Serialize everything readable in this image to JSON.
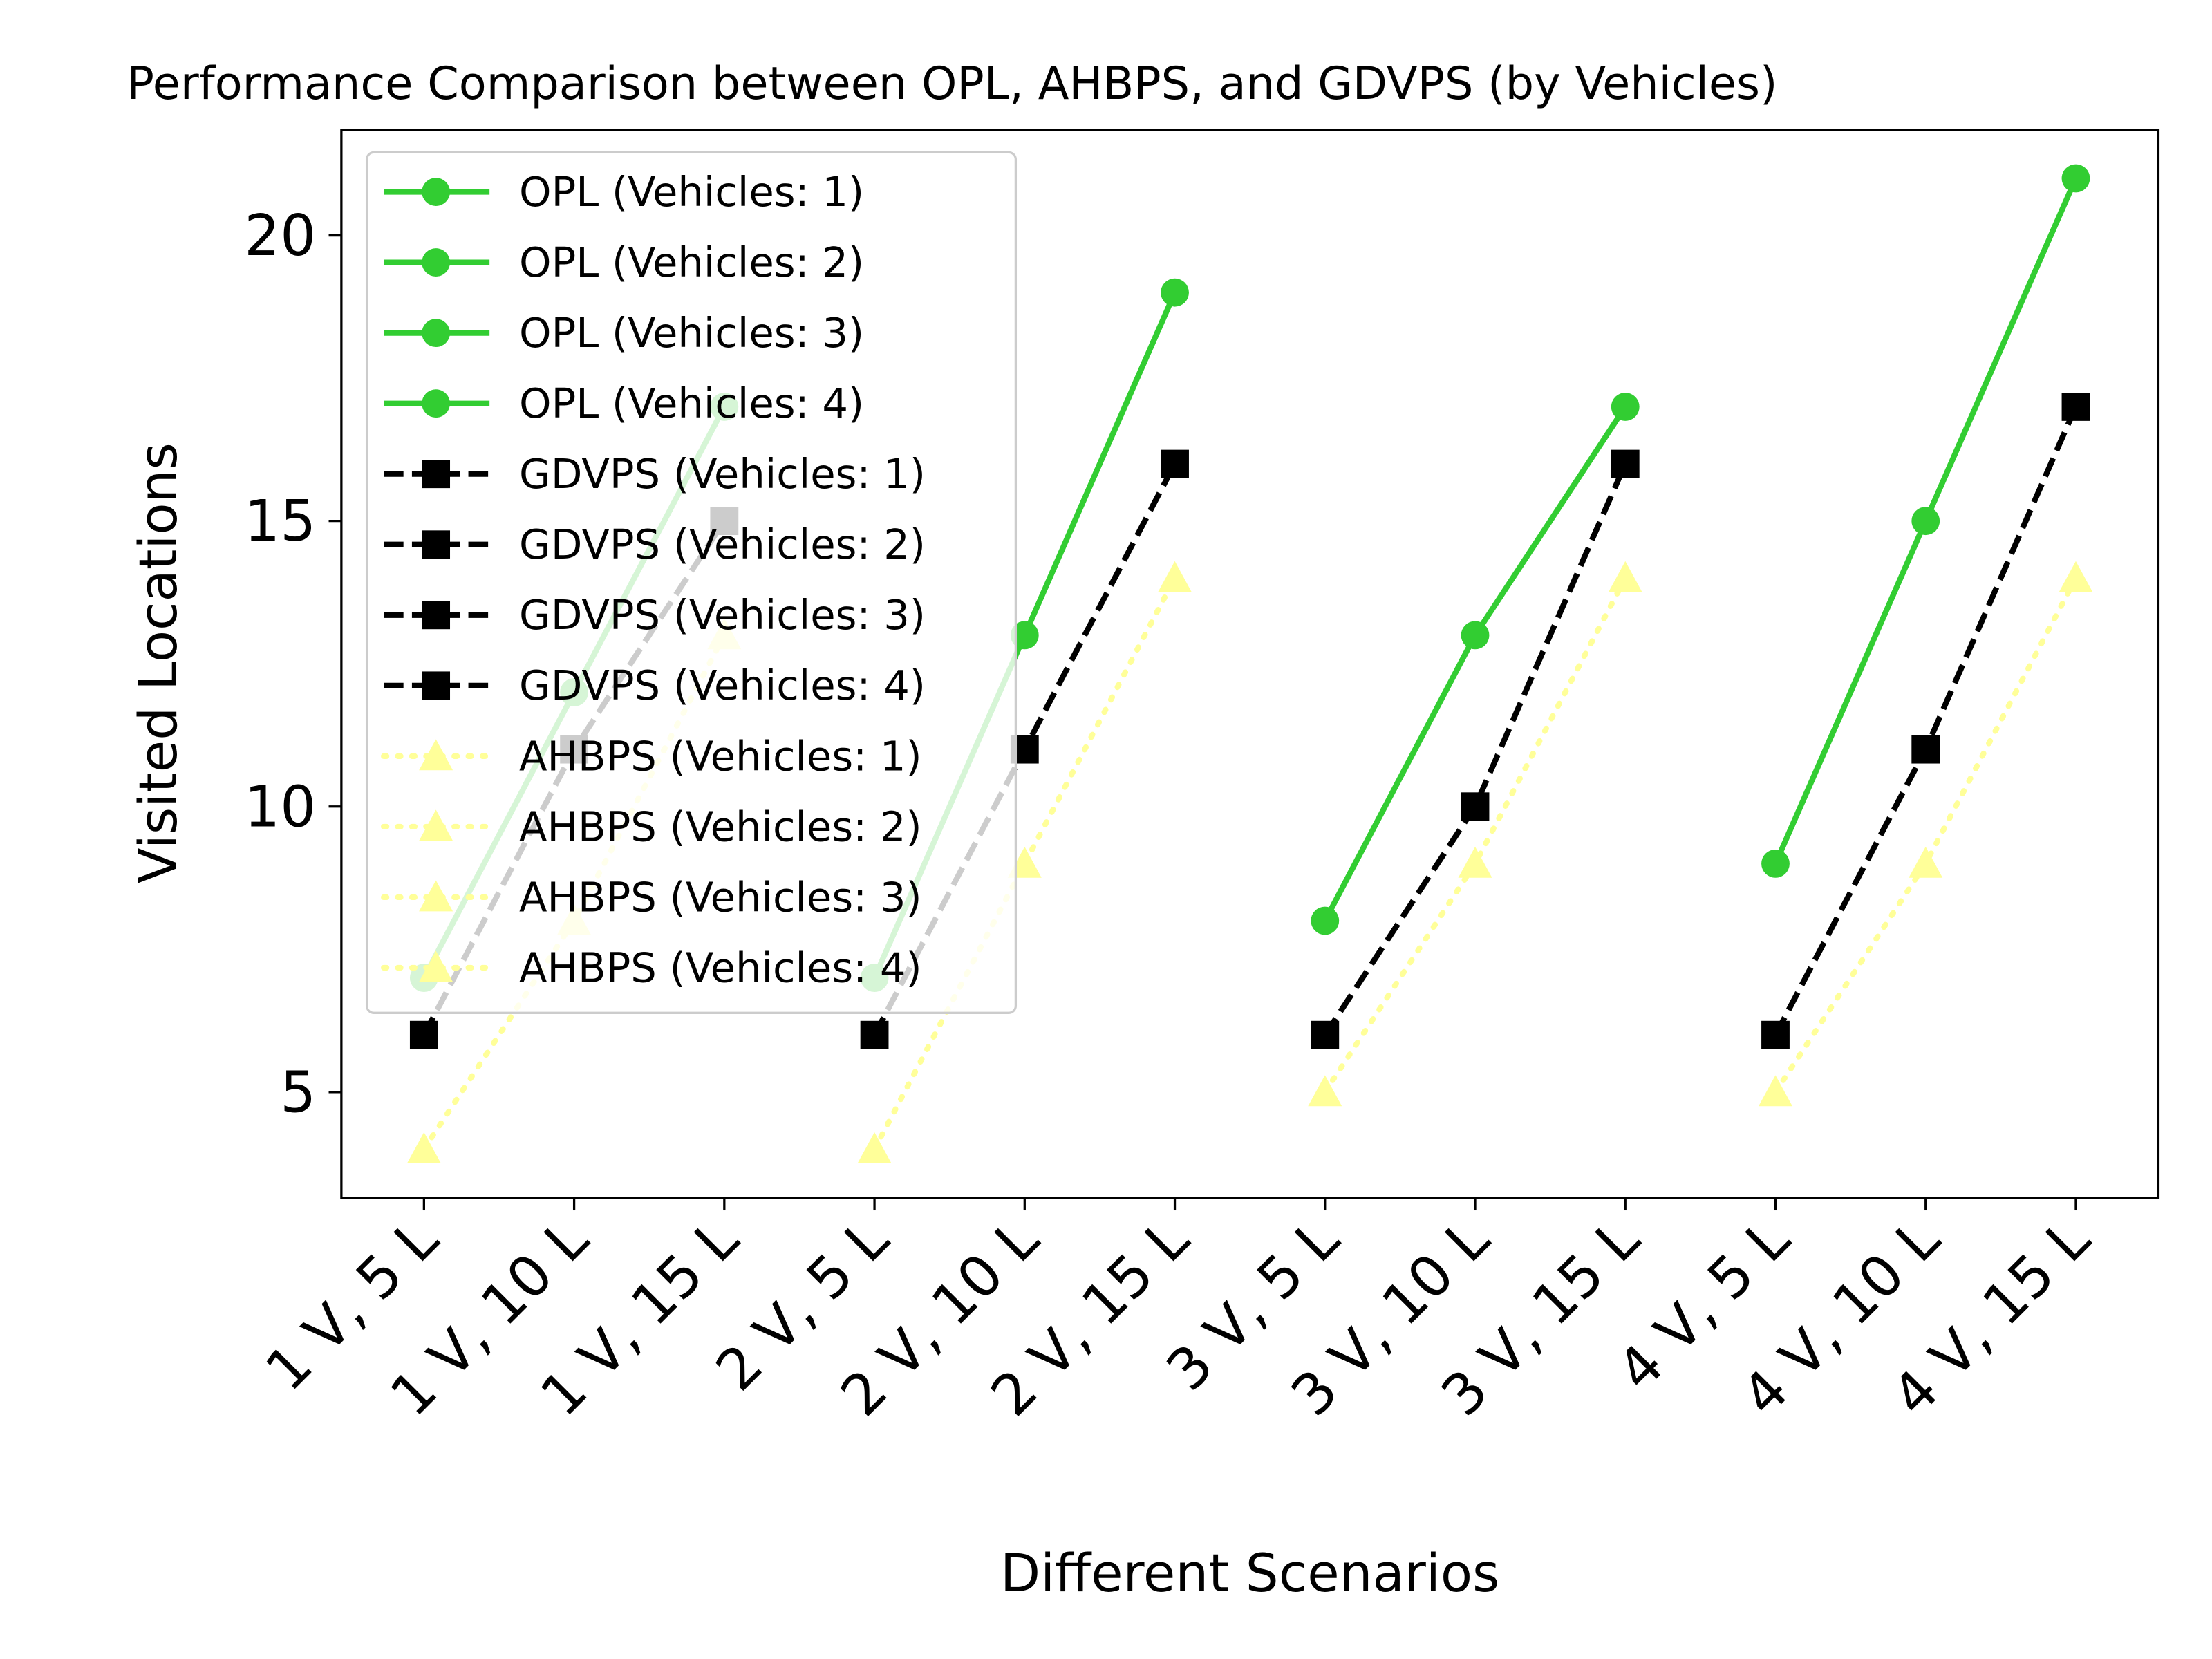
{
  "chart_data": {
    "type": "line",
    "title": "Performance Comparison between OPL, AHBPS, and GDVPS (by Vehicles)",
    "x_label": "Different Scenarios",
    "y_label": "Visited Locations",
    "categories": [
      "1 V, 5 L",
      "1 V, 10 L",
      "1 V, 15 L",
      "2 V, 5 L",
      "2 V, 10 L",
      "2 V, 15 L",
      "3 V, 5 L",
      "3 V, 10 L",
      "3 V, 15 L",
      "4 V, 5 L",
      "4 V, 10 L",
      "4 V, 15 L"
    ],
    "ylim": [
      3.15,
      21.85
    ],
    "yticks": [
      5,
      10,
      15,
      20
    ],
    "legend": "upper left",
    "series": [
      {
        "name": "OPL (Vehicles: 1)",
        "color": "#32cd32",
        "linestyle": "solid",
        "marker": "circle",
        "values": [
          7,
          12,
          17,
          null,
          null,
          null,
          null,
          null,
          null,
          null,
          null,
          null
        ]
      },
      {
        "name": "OPL (Vehicles: 2)",
        "color": "#32cd32",
        "linestyle": "solid",
        "marker": "circle",
        "values": [
          null,
          null,
          null,
          7,
          13,
          19,
          null,
          null,
          null,
          null,
          null,
          null
        ]
      },
      {
        "name": "OPL (Vehicles: 3)",
        "color": "#32cd32",
        "linestyle": "solid",
        "marker": "circle",
        "values": [
          null,
          null,
          null,
          null,
          null,
          null,
          8,
          13,
          17,
          null,
          null,
          null
        ]
      },
      {
        "name": "OPL (Vehicles: 4)",
        "color": "#32cd32",
        "linestyle": "solid",
        "marker": "circle",
        "values": [
          null,
          null,
          null,
          null,
          null,
          null,
          null,
          null,
          null,
          9,
          15,
          21
        ]
      },
      {
        "name": "GDVPS (Vehicles: 1)",
        "color": "#000000",
        "linestyle": "dashed",
        "marker": "square",
        "values": [
          6,
          11,
          15,
          null,
          null,
          null,
          null,
          null,
          null,
          null,
          null,
          null
        ]
      },
      {
        "name": "GDVPS (Vehicles: 2)",
        "color": "#000000",
        "linestyle": "dashed",
        "marker": "square",
        "values": [
          null,
          null,
          null,
          6,
          11,
          16,
          null,
          null,
          null,
          null,
          null,
          null
        ]
      },
      {
        "name": "GDVPS (Vehicles: 3)",
        "color": "#000000",
        "linestyle": "dashed",
        "marker": "square",
        "values": [
          null,
          null,
          null,
          null,
          null,
          null,
          6,
          10,
          16,
          null,
          null,
          null
        ]
      },
      {
        "name": "GDVPS (Vehicles: 4)",
        "color": "#000000",
        "linestyle": "dashed",
        "marker": "square",
        "values": [
          null,
          null,
          null,
          null,
          null,
          null,
          null,
          null,
          null,
          6,
          11,
          17
        ]
      },
      {
        "name": "AHBPS (Vehicles: 1)",
        "color": "#ffff99",
        "linestyle": "dotted",
        "marker": "triangle",
        "values": [
          4,
          8,
          13,
          null,
          null,
          null,
          null,
          null,
          null,
          null,
          null,
          null
        ]
      },
      {
        "name": "AHBPS (Vehicles: 2)",
        "color": "#ffff99",
        "linestyle": "dotted",
        "marker": "triangle",
        "values": [
          null,
          null,
          null,
          4,
          9,
          14,
          null,
          null,
          null,
          null,
          null,
          null
        ]
      },
      {
        "name": "AHBPS (Vehicles: 3)",
        "color": "#ffff99",
        "linestyle": "dotted",
        "marker": "triangle",
        "values": [
          null,
          null,
          null,
          null,
          null,
          null,
          5,
          9,
          14,
          null,
          null,
          null
        ]
      },
      {
        "name": "AHBPS (Vehicles: 4)",
        "color": "#ffff99",
        "linestyle": "dotted",
        "marker": "triangle",
        "values": [
          null,
          null,
          null,
          null,
          null,
          null,
          null,
          null,
          null,
          5,
          9,
          14
        ]
      }
    ]
  }
}
